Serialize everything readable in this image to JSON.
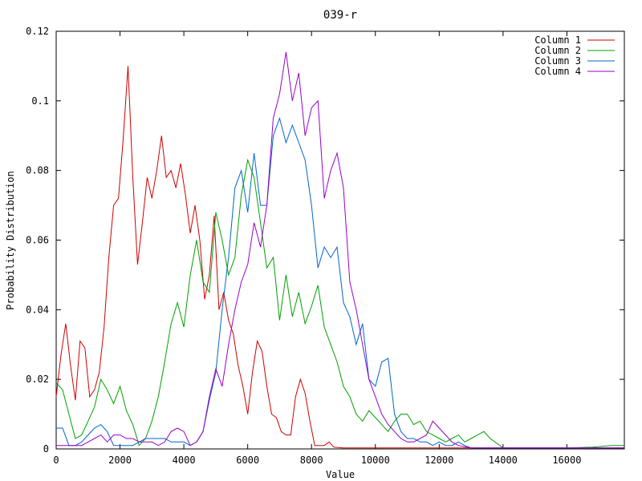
{
  "chart_data": {
    "type": "line",
    "title": "039-r",
    "xlabel": "Value",
    "ylabel": "Probability Distribution",
    "xlim": [
      0,
      17800
    ],
    "ylim": [
      0,
      0.12
    ],
    "x_ticks": [
      0,
      2000,
      4000,
      6000,
      8000,
      10000,
      12000,
      14000,
      16000
    ],
    "x_tick_labels": [
      "0",
      "2000",
      "4000",
      "6000",
      "8000",
      "10000",
      "12000",
      "14000",
      "16000"
    ],
    "y_ticks": [
      0,
      0.02,
      0.04,
      0.06,
      0.08,
      0.1,
      0.12
    ],
    "y_tick_labels": [
      "0",
      "0.02",
      "0.04",
      "0.06",
      "0.08",
      "0.1",
      "0.12"
    ],
    "grid": false,
    "legend_position": "top-right",
    "series": [
      {
        "name": "Column 1",
        "color": "#cc0000",
        "x": [
          0,
          150,
          300,
          450,
          600,
          750,
          900,
          1050,
          1200,
          1350,
          1500,
          1650,
          1800,
          1950,
          2100,
          2250,
          2400,
          2550,
          2700,
          2850,
          3000,
          3150,
          3300,
          3450,
          3600,
          3750,
          3900,
          4050,
          4200,
          4350,
          4500,
          4650,
          4800,
          4950,
          5100,
          5250,
          5400,
          5550,
          5700,
          5850,
          6000,
          6150,
          6300,
          6450,
          6600,
          6750,
          6900,
          7050,
          7200,
          7350,
          7500,
          7650,
          7800,
          7950,
          8100,
          8250,
          8400,
          8550,
          8700,
          9000,
          10000,
          12000,
          14000,
          16000,
          17800
        ],
        "values": [
          0.015,
          0.027,
          0.036,
          0.024,
          0.014,
          0.031,
          0.029,
          0.015,
          0.017,
          0.022,
          0.035,
          0.055,
          0.07,
          0.072,
          0.089,
          0.11,
          0.078,
          0.053,
          0.065,
          0.078,
          0.072,
          0.08,
          0.09,
          0.078,
          0.08,
          0.075,
          0.082,
          0.073,
          0.062,
          0.07,
          0.06,
          0.043,
          0.05,
          0.067,
          0.04,
          0.045,
          0.037,
          0.033,
          0.024,
          0.018,
          0.01,
          0.022,
          0.031,
          0.028,
          0.018,
          0.01,
          0.009,
          0.005,
          0.004,
          0.004,
          0.015,
          0.02,
          0.016,
          0.008,
          0.001,
          0.001,
          0.001,
          0.002,
          0.0005,
          0.0003,
          0.0003,
          0.0003,
          0.0003,
          0.0003,
          0.0003
        ]
      },
      {
        "name": "Column 2",
        "color": "#00a000",
        "x": [
          0,
          200,
          400,
          600,
          800,
          1000,
          1200,
          1400,
          1600,
          1800,
          2000,
          2200,
          2400,
          2600,
          2800,
          3000,
          3200,
          3400,
          3600,
          3800,
          4000,
          4200,
          4400,
          4600,
          4800,
          5000,
          5200,
          5400,
          5600,
          5800,
          6000,
          6200,
          6400,
          6600,
          6800,
          7000,
          7200,
          7400,
          7600,
          7800,
          8000,
          8200,
          8400,
          8600,
          8800,
          9000,
          9200,
          9400,
          9600,
          9800,
          10000,
          10200,
          10400,
          10600,
          10800,
          11000,
          11200,
          11400,
          11600,
          11800,
          12000,
          12200,
          12400,
          12600,
          12800,
          13000,
          13200,
          13400,
          13600,
          14000,
          15000,
          16000,
          16800,
          17400,
          17800
        ],
        "values": [
          0.019,
          0.017,
          0.01,
          0.003,
          0.004,
          0.008,
          0.012,
          0.02,
          0.017,
          0.013,
          0.018,
          0.011,
          0.007,
          0.001,
          0.003,
          0.008,
          0.015,
          0.025,
          0.036,
          0.042,
          0.035,
          0.05,
          0.06,
          0.048,
          0.045,
          0.068,
          0.06,
          0.05,
          0.055,
          0.073,
          0.083,
          0.078,
          0.065,
          0.052,
          0.055,
          0.037,
          0.05,
          0.038,
          0.045,
          0.036,
          0.041,
          0.047,
          0.035,
          0.03,
          0.025,
          0.018,
          0.015,
          0.01,
          0.008,
          0.011,
          0.009,
          0.007,
          0.005,
          0.008,
          0.01,
          0.01,
          0.007,
          0.008,
          0.005,
          0.004,
          0.003,
          0.002,
          0.003,
          0.004,
          0.002,
          0.003,
          0.004,
          0.005,
          0.003,
          0.0003,
          0.0003,
          0.0003,
          0.0005,
          0.001,
          0.001
        ]
      },
      {
        "name": "Column 3",
        "color": "#0066cc",
        "x": [
          0,
          200,
          400,
          600,
          800,
          1000,
          1200,
          1400,
          1600,
          1800,
          2000,
          2200,
          2400,
          2600,
          2800,
          3000,
          3200,
          3400,
          3600,
          3800,
          4000,
          4200,
          4400,
          4600,
          4800,
          5000,
          5200,
          5400,
          5600,
          5800,
          6000,
          6200,
          6400,
          6600,
          6800,
          7000,
          7200,
          7400,
          7600,
          7800,
          8000,
          8200,
          8400,
          8600,
          8800,
          9000,
          9200,
          9400,
          9600,
          9800,
          10000,
          10200,
          10400,
          10600,
          10800,
          11000,
          11200,
          11400,
          11600,
          11800,
          12000,
          12200,
          12400,
          12600,
          12800,
          13000,
          14000,
          16000,
          17800
        ],
        "values": [
          0.006,
          0.006,
          0.001,
          0.001,
          0.002,
          0.004,
          0.006,
          0.007,
          0.005,
          0.001,
          0.001,
          0.001,
          0.001,
          0.002,
          0.003,
          0.003,
          0.003,
          0.003,
          0.002,
          0.002,
          0.002,
          0.001,
          0.002,
          0.005,
          0.014,
          0.022,
          0.04,
          0.055,
          0.075,
          0.08,
          0.068,
          0.085,
          0.07,
          0.07,
          0.09,
          0.095,
          0.088,
          0.093,
          0.088,
          0.083,
          0.07,
          0.052,
          0.058,
          0.055,
          0.058,
          0.042,
          0.038,
          0.03,
          0.036,
          0.02,
          0.018,
          0.025,
          0.026,
          0.01,
          0.005,
          0.003,
          0.003,
          0.002,
          0.002,
          0.001,
          0.002,
          0.001,
          0.001,
          0.002,
          0.001,
          0.0003,
          0.0003,
          0.0003,
          0.0003
        ]
      },
      {
        "name": "Column 4",
        "color": "#9900cc",
        "x": [
          0,
          200,
          400,
          600,
          800,
          1000,
          1200,
          1400,
          1600,
          1800,
          2000,
          2200,
          2400,
          2600,
          2800,
          3000,
          3200,
          3400,
          3600,
          3800,
          4000,
          4200,
          4400,
          4600,
          4800,
          5000,
          5200,
          5400,
          5600,
          5800,
          6000,
          6200,
          6400,
          6600,
          6800,
          7000,
          7200,
          7400,
          7600,
          7800,
          8000,
          8200,
          8400,
          8600,
          8800,
          9000,
          9200,
          9400,
          9600,
          9800,
          10000,
          10200,
          10400,
          10600,
          10800,
          11000,
          11200,
          11400,
          11600,
          11800,
          12000,
          12200,
          12400,
          12600,
          13000,
          14000,
          16000,
          17800
        ],
        "values": [
          0.001,
          0.001,
          0.001,
          0.001,
          0.001,
          0.002,
          0.003,
          0.004,
          0.002,
          0.004,
          0.004,
          0.003,
          0.003,
          0.002,
          0.002,
          0.002,
          0.001,
          0.002,
          0.005,
          0.006,
          0.005,
          0.001,
          0.002,
          0.005,
          0.015,
          0.023,
          0.018,
          0.03,
          0.04,
          0.048,
          0.053,
          0.065,
          0.058,
          0.07,
          0.095,
          0.102,
          0.114,
          0.1,
          0.108,
          0.09,
          0.098,
          0.1,
          0.072,
          0.08,
          0.085,
          0.075,
          0.048,
          0.04,
          0.03,
          0.02,
          0.015,
          0.01,
          0.007,
          0.005,
          0.003,
          0.002,
          0.002,
          0.003,
          0.004,
          0.008,
          0.006,
          0.004,
          0.002,
          0.001,
          0.0003,
          0.0003,
          0.0003,
          0.0003
        ]
      }
    ]
  }
}
